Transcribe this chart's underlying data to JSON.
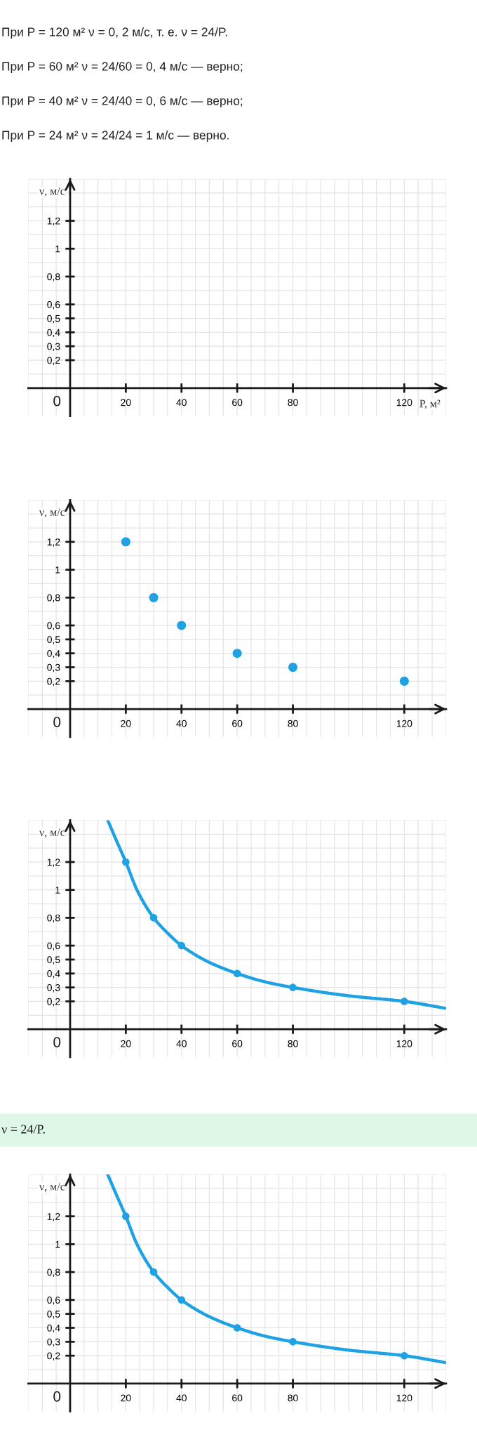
{
  "chart_data": [
    {
      "type": "scatter",
      "annotations": [
        "При P = 120 м² ν = 0, 2 м/с, т. е. ν = 24/P.",
        "При P = 60 м² ν = 24/60 = 0, 4 м/с — верно;",
        "При P = 40 м² ν = 24/40 = 0, 6 м/с — верно;",
        "При P = 24 м² ν = 24/24 = 1 м/с — верно.",
        "0"
      ],
      "xlabel": "P, м²",
      "ylabel": "ν, м/с",
      "xlim": [
        -15,
        135
      ],
      "ylim": [
        -0.2,
        1.5
      ],
      "xticks": [
        20,
        40,
        60,
        80,
        120
      ],
      "yticks": [
        {
          "value": 0.2,
          "label": "0,2"
        },
        {
          "value": 0.3,
          "label": "0,3"
        },
        {
          "value": 0.4,
          "label": "0,4"
        },
        {
          "value": 0.5,
          "label": "0,5"
        },
        {
          "value": 0.6,
          "label": "0,6"
        },
        {
          "value": 0.8,
          "label": "0,8"
        },
        1,
        {
          "value": 1.2,
          "label": "1,2"
        }
      ],
      "grid": true
    },
    {
      "type": "scatter",
      "ylabel": "ν, м/с",
      "annotations": [
        "0"
      ],
      "x": [
        20,
        30,
        40,
        60,
        80,
        120
      ],
      "values": [
        1.2,
        0.8,
        0.6,
        0.4,
        0.3,
        0.2
      ],
      "color": "#1fa2e3",
      "marker": "circle",
      "xlim": [
        -15,
        135
      ],
      "ylim": [
        -0.2,
        1.5
      ],
      "xticks": [
        20,
        40,
        60,
        80,
        120
      ],
      "yticks": [
        {
          "value": 0.2,
          "label": "0,2"
        },
        {
          "value": 0.3,
          "label": "0,3"
        },
        {
          "value": 0.4,
          "label": "0,4"
        },
        {
          "value": 0.5,
          "label": "0,5"
        },
        {
          "value": 0.6,
          "label": "0,6"
        },
        {
          "value": 0.8,
          "label": "0,8"
        },
        1,
        {
          "value": 1.2,
          "label": "1,2"
        }
      ],
      "grid": true
    },
    {
      "type": "line",
      "ylabel": "ν, м/с",
      "annotations": [
        "0"
      ],
      "series": [
        {
          "type": "line",
          "color": "#1fa2e3",
          "line_style": "solid",
          "marker": "none",
          "x": [
            13.5,
            16.5,
            20,
            24,
            30,
            35,
            40,
            50,
            60,
            70,
            80,
            100,
            120,
            135
          ],
          "values": [
            1.5,
            1.36,
            1.2,
            1.0,
            0.8,
            0.69,
            0.6,
            0.48,
            0.4,
            0.34,
            0.3,
            0.24,
            0.2,
            0.15
          ]
        },
        {
          "type": "scatter",
          "color": "#1fa2e3",
          "marker": "circle",
          "x": [
            20,
            30,
            40,
            60,
            80,
            120
          ],
          "values": [
            1.2,
            0.8,
            0.6,
            0.4,
            0.3,
            0.2
          ]
        }
      ],
      "xlim": [
        -15,
        135
      ],
      "ylim": [
        -0.2,
        1.5
      ],
      "xticks": [
        20,
        40,
        60,
        80,
        120
      ],
      "yticks": [
        {
          "value": 0.2,
          "label": "0,2"
        },
        {
          "value": 0.3,
          "label": "0,3"
        },
        {
          "value": 0.4,
          "label": "0,4"
        },
        {
          "value": 0.5,
          "label": "0,5"
        },
        {
          "value": 0.6,
          "label": "0,6"
        },
        {
          "value": 0.8,
          "label": "0,8"
        },
        1,
        {
          "value": 1.2,
          "label": "1,2"
        }
      ],
      "grid": true
    },
    {
      "type": "line",
      "title": "ν = 24/P.",
      "ylabel": "ν, м/с",
      "annotations": [
        "0"
      ],
      "series": [
        {
          "type": "line",
          "color": "#1fa2e3",
          "line_style": "solid",
          "marker": "none",
          "x": [
            13.5,
            16.5,
            20,
            24,
            30,
            35,
            40,
            50,
            60,
            70,
            80,
            100,
            120,
            135
          ],
          "values": [
            1.5,
            1.36,
            1.2,
            1.0,
            0.8,
            0.69,
            0.6,
            0.48,
            0.4,
            0.34,
            0.3,
            0.24,
            0.2,
            0.15
          ]
        },
        {
          "type": "scatter",
          "color": "#1fa2e3",
          "marker": "circle",
          "x": [
            20,
            30,
            40,
            60,
            80,
            120
          ],
          "values": [
            1.2,
            0.8,
            0.6,
            0.4,
            0.3,
            0.2
          ]
        }
      ],
      "xlim": [
        -15,
        135
      ],
      "ylim": [
        -0.2,
        1.5
      ],
      "xticks": [
        20,
        40,
        60,
        80,
        120
      ],
      "yticks": [
        {
          "value": 0.2,
          "label": "0,2"
        },
        {
          "value": 0.3,
          "label": "0,3"
        },
        {
          "value": 0.4,
          "label": "0,4"
        },
        {
          "value": 0.5,
          "label": "0,5"
        },
        {
          "value": 0.6,
          "label": "0,6"
        },
        {
          "value": 0.8,
          "label": "0,8"
        },
        1,
        {
          "value": 1.2,
          "label": "1,2"
        }
      ],
      "grid": true
    }
  ]
}
